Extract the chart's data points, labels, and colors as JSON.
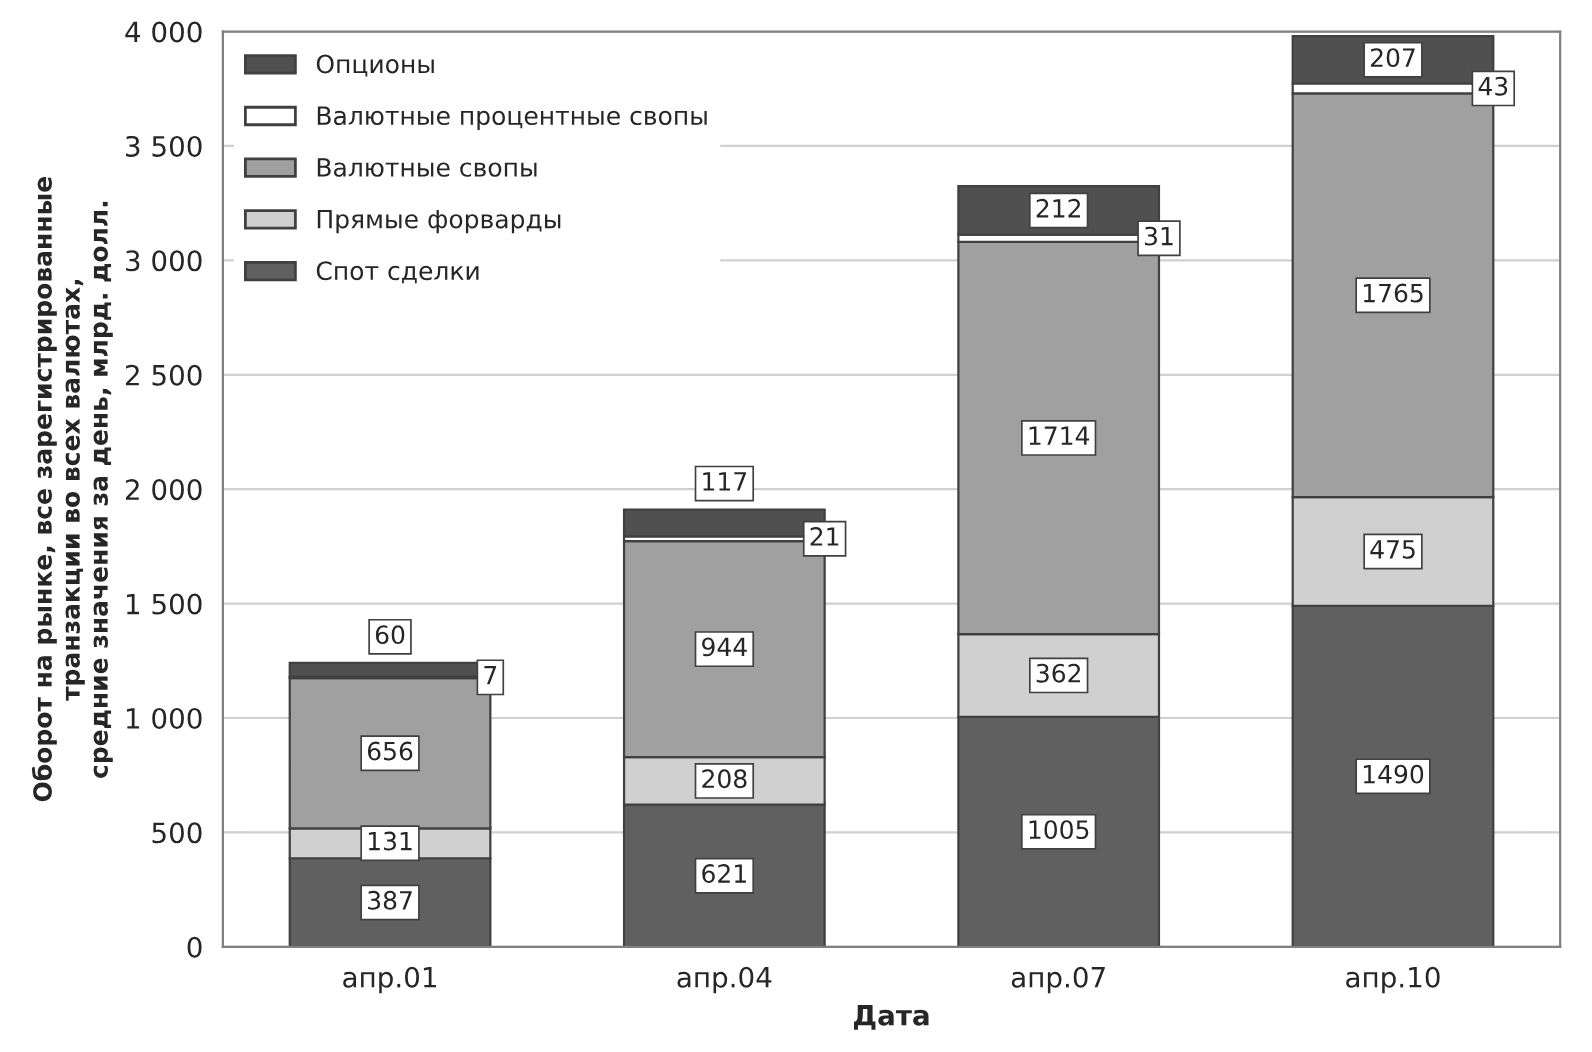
{
  "chart_data": {
    "type": "bar",
    "stacked": true,
    "xlabel": "Дата",
    "ylabel": "Оборот на рынке, все зарегистрированные\nтранзакции во всех валютах,\nсредние значения за день, млрд. долл.",
    "categories": [
      "апр.01",
      "апр.04",
      "апр.07",
      "апр.10"
    ],
    "series": [
      {
        "name": "Спот сделки",
        "color": "#606060",
        "values": [
          387,
          621,
          1005,
          1490
        ]
      },
      {
        "name": "Прямые форварды",
        "color": "#d0d0d0",
        "values": [
          131,
          208,
          362,
          475
        ]
      },
      {
        "name": "Валютные свопы",
        "color": "#a0a0a0",
        "values": [
          656,
          944,
          1714,
          1765
        ]
      },
      {
        "name": "Валютные процентные свопы",
        "color": "#ffffff",
        "values": [
          7,
          21,
          31,
          43
        ]
      },
      {
        "name": "Опционы",
        "color": "#505050",
        "values": [
          60,
          117,
          212,
          207
        ]
      }
    ],
    "ylim": [
      0,
      4000
    ],
    "yticks": [
      0,
      500,
      {
        "value": 1000,
        "label": "1 000"
      },
      {
        "value": 1500,
        "label": "1 500"
      },
      {
        "value": 2000,
        "label": "2 000"
      },
      {
        "value": 2500,
        "label": "2 500"
      },
      {
        "value": 3000,
        "label": "3 000"
      },
      {
        "value": 3500,
        "label": "3 500"
      },
      {
        "value": 4000,
        "label": "4 000"
      }
    ],
    "grid": "y",
    "legend": "top left",
    "data_labels": true
  }
}
